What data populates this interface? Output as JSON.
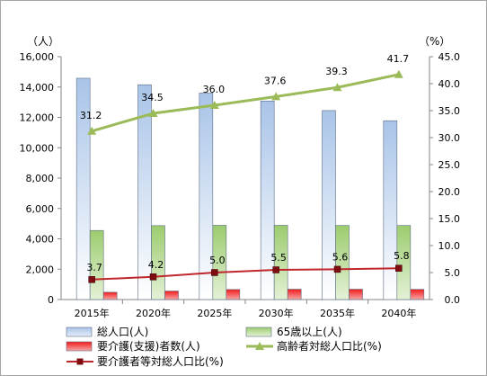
{
  "chart_data": {
    "type": "bar",
    "categories": [
      "2015年",
      "2020年",
      "2025年",
      "2030年",
      "2035年",
      "2040年"
    ],
    "y_left": {
      "unit": "（人）",
      "min": 0,
      "max": 16000,
      "step": 2000,
      "ticks": [
        "0",
        "2,000",
        "4,000",
        "6,000",
        "8,000",
        "10,000",
        "12,000",
        "14,000",
        "16,000"
      ]
    },
    "y_right": {
      "unit": "（%）",
      "min": 0,
      "max": 45,
      "step": 5,
      "ticks": [
        "0.0",
        "5.0",
        "10.0",
        "15.0",
        "20.0",
        "25.0",
        "30.0",
        "35.0",
        "40.0",
        "45.0"
      ]
    },
    "grid": false,
    "legend_position": "bottom",
    "bar_series": [
      {
        "name": "総人口(人)",
        "axis": "left",
        "color": "#95b3d7",
        "values": [
          14580,
          14150,
          13600,
          13080,
          12450,
          11780
        ]
      },
      {
        "name": "65歳以上(人)",
        "axis": "left",
        "color": "#9bbb59",
        "values": [
          4550,
          4870,
          4890,
          4890,
          4880,
          4880
        ]
      },
      {
        "name": "要介護(支援)者数(人)",
        "axis": "left",
        "color": "#e32b2b",
        "values": [
          480,
          560,
          660,
          680,
          680,
          670
        ]
      }
    ],
    "line_series": [
      {
        "name": "高齢者対総人口比(%)",
        "axis": "right",
        "color": "#9bbb59",
        "marker": "triangle",
        "values": [
          31.2,
          34.5,
          36.0,
          37.6,
          39.3,
          41.7
        ],
        "labels": [
          "31.2",
          "34.5",
          "36.0",
          "37.6",
          "39.3",
          "41.7"
        ]
      },
      {
        "name": "要介護者等対総人口比(%)",
        "axis": "right",
        "color": "#c0272d",
        "marker_color": "#7f0c10",
        "marker": "square",
        "values": [
          3.7,
          4.2,
          5.0,
          5.5,
          5.6,
          5.8
        ],
        "labels": [
          "3.7",
          "4.2",
          "5.0",
          "5.5",
          "5.6",
          "5.8"
        ]
      }
    ]
  }
}
